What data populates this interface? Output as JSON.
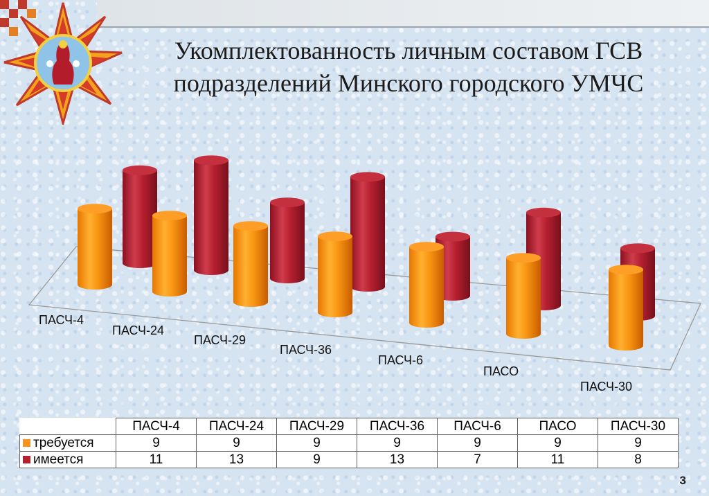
{
  "slide": {
    "title_line1": "Укомплектованность личным составом ГСВ",
    "title_line2": "подразделений Минского городского УМЧС",
    "page_number": "3"
  },
  "colors": {
    "required": "#f7931e",
    "available": "#b51f2e"
  },
  "chart_data": {
    "type": "bar",
    "style": "3d-cylinder",
    "categories": [
      "ПАСЧ-4",
      "ПАСЧ-24",
      "ПАСЧ-29",
      "ПАСЧ-36",
      "ПАСЧ-6",
      "ПАСО",
      "ПАСЧ-30"
    ],
    "series": [
      {
        "name": "требуется",
        "color": "#f7931e",
        "values": [
          9,
          9,
          9,
          9,
          9,
          9,
          9
        ]
      },
      {
        "name": "имеется",
        "color": "#b51f2e",
        "values": [
          11,
          13,
          9,
          13,
          7,
          11,
          8
        ]
      }
    ],
    "title": "",
    "xlabel": "",
    "ylabel": "",
    "grid": false,
    "legend": "data table below chart"
  }
}
